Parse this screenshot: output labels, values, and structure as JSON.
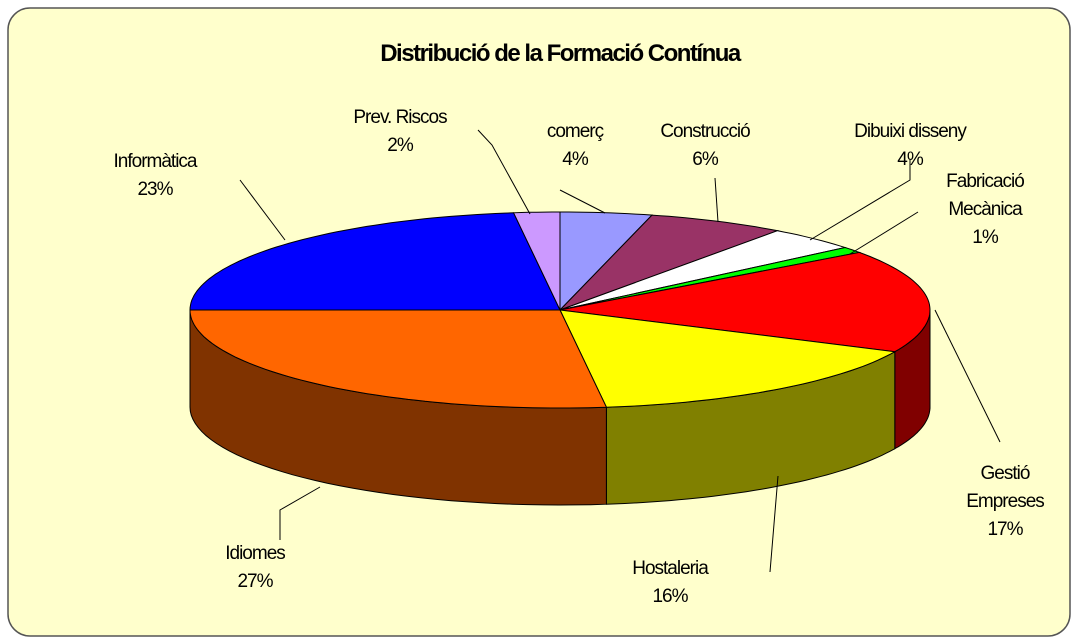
{
  "chart_data": {
    "type": "pie3d",
    "title": "Distribució de la Formació Contínua",
    "categories": [
      "comerç",
      "Construcció",
      "Dibuixi disseny",
      "Fabricació Mecànica",
      "Gestió Empreses",
      "Hostaleria",
      "Idiomes",
      "Informàtica",
      "Prev. Riscos"
    ],
    "values": [
      4,
      6,
      4,
      1,
      17,
      16,
      27,
      23,
      2
    ],
    "value_labels": [
      "4%",
      "6%",
      "4%",
      "1%",
      "17%",
      "16%",
      "27%",
      "23%",
      "2%"
    ],
    "colors": [
      "#9999ff",
      "#993366",
      "#ffffff",
      "#00ff00",
      "#ff0000",
      "#ffff00",
      "#ff6600",
      "#0000ff",
      "#cc99ff"
    ]
  }
}
